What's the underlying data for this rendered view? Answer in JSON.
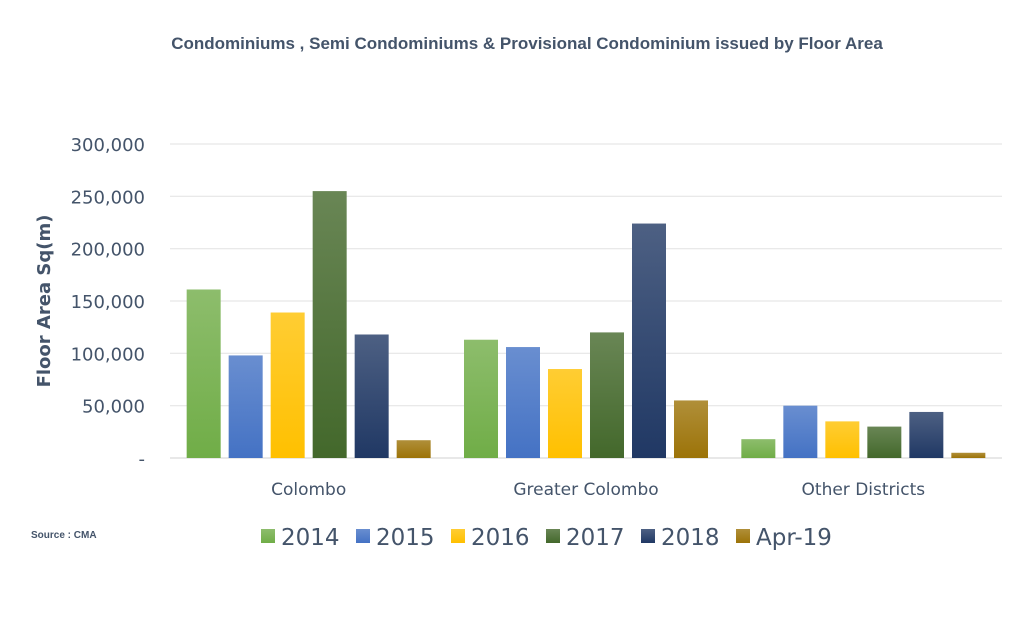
{
  "chart_data": {
    "type": "bar",
    "title": "Condominiums , Semi Condominiums & Provisional Condominium issued by Floor Area",
    "xlabel": "",
    "ylabel": "Floor Area Sq(m)",
    "ylim": [
      0,
      300000
    ],
    "yticks": [
      0,
      50000,
      100000,
      150000,
      200000,
      250000,
      300000
    ],
    "ytick_labels": [
      "-",
      "50,000",
      "100,000",
      "150,000",
      "200,000",
      "250,000",
      "300,000"
    ],
    "grid": true,
    "legend_position": "bottom",
    "categories": [
      "Colombo",
      "Greater Colombo",
      "Other Districts"
    ],
    "series": [
      {
        "name": "2014",
        "color": "#70ad47",
        "values": [
          161000,
          113000,
          18000
        ]
      },
      {
        "name": "2015",
        "color": "#4472c4",
        "values": [
          98000,
          106000,
          50000
        ]
      },
      {
        "name": "2016",
        "color": "#ffc000",
        "values": [
          139000,
          85000,
          35000
        ]
      },
      {
        "name": "2017",
        "color": "#43682b",
        "values": [
          255000,
          120000,
          30000
        ]
      },
      {
        "name": "2018",
        "color": "#203864",
        "values": [
          118000,
          224000,
          44000
        ]
      },
      {
        "name": "Apr-19",
        "color": "#9c7308",
        "values": [
          17000,
          55000,
          5000
        ]
      }
    ],
    "source": "Source : CMA"
  }
}
